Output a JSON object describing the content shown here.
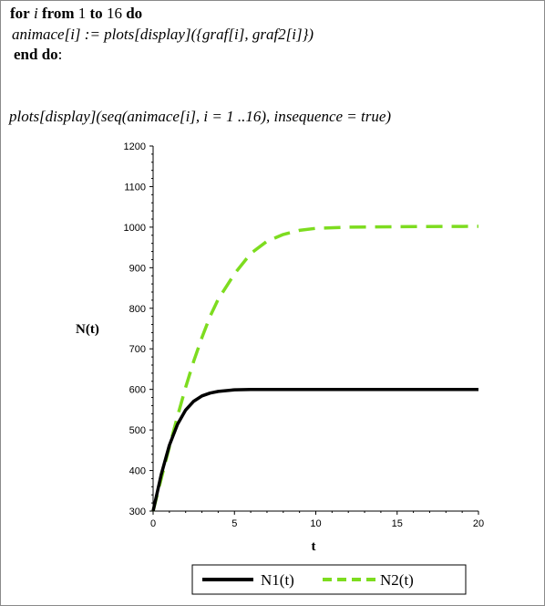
{
  "code": {
    "line1": {
      "kw_for": "for",
      "var_i": "i",
      "kw_from": "from",
      "from_val": "1",
      "kw_to": "to",
      "to_val": "16",
      "kw_do": "do"
    },
    "line2": "animace[i] := plots[display]({graf[i], graf2[i]})",
    "line3_kw": "end do",
    "line3_tail": ":",
    "line4": "plots[display](seq(animace[i], i = 1 ..16), insequence = true)"
  },
  "chart_data": {
    "type": "line",
    "xlabel": "t",
    "ylabel": "N(t)",
    "xlim": [
      0,
      20
    ],
    "ylim": [
      300,
      1200
    ],
    "xticks": [
      0,
      5,
      10,
      15,
      20
    ],
    "yticks": [
      300,
      400,
      500,
      600,
      700,
      800,
      900,
      1000,
      1100,
      1200
    ],
    "legend_position": "bottom",
    "series": [
      {
        "name": "N1(t)",
        "color": "#000000",
        "style": "solid",
        "x": [
          0,
          0.5,
          1,
          1.5,
          2,
          2.5,
          3,
          3.5,
          4,
          5,
          6,
          8,
          10,
          15,
          20
        ],
        "y": [
          300,
          390,
          462,
          514,
          549,
          571,
          584,
          591,
          595,
          599,
          600,
          600,
          600,
          600,
          600
        ]
      },
      {
        "name": "N2(t)",
        "color": "#7ddc1f",
        "style": "dashed",
        "x": [
          0,
          0.5,
          1,
          1.5,
          2,
          2.5,
          3,
          3.5,
          4,
          5,
          6,
          7,
          8,
          9,
          10,
          12,
          15,
          20
        ],
        "y": [
          300,
          380,
          458,
          534,
          605,
          670,
          728,
          780,
          822,
          885,
          935,
          965,
          982,
          992,
          997,
          1000,
          1001,
          1002
        ]
      }
    ]
  }
}
